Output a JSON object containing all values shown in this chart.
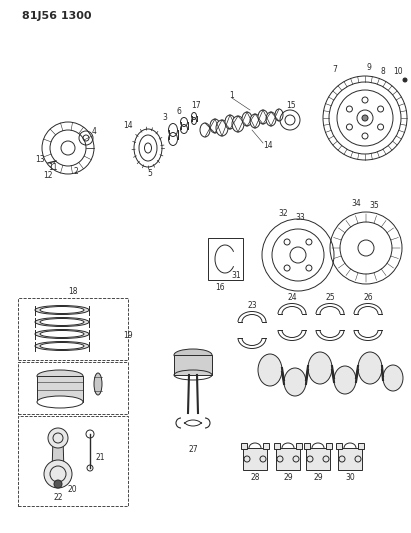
{
  "title": "81J56 1300",
  "bg_color": "#ffffff",
  "line_color": "#2a2a2a",
  "fig_width": 4.11,
  "fig_height": 5.33,
  "dpi": 100
}
